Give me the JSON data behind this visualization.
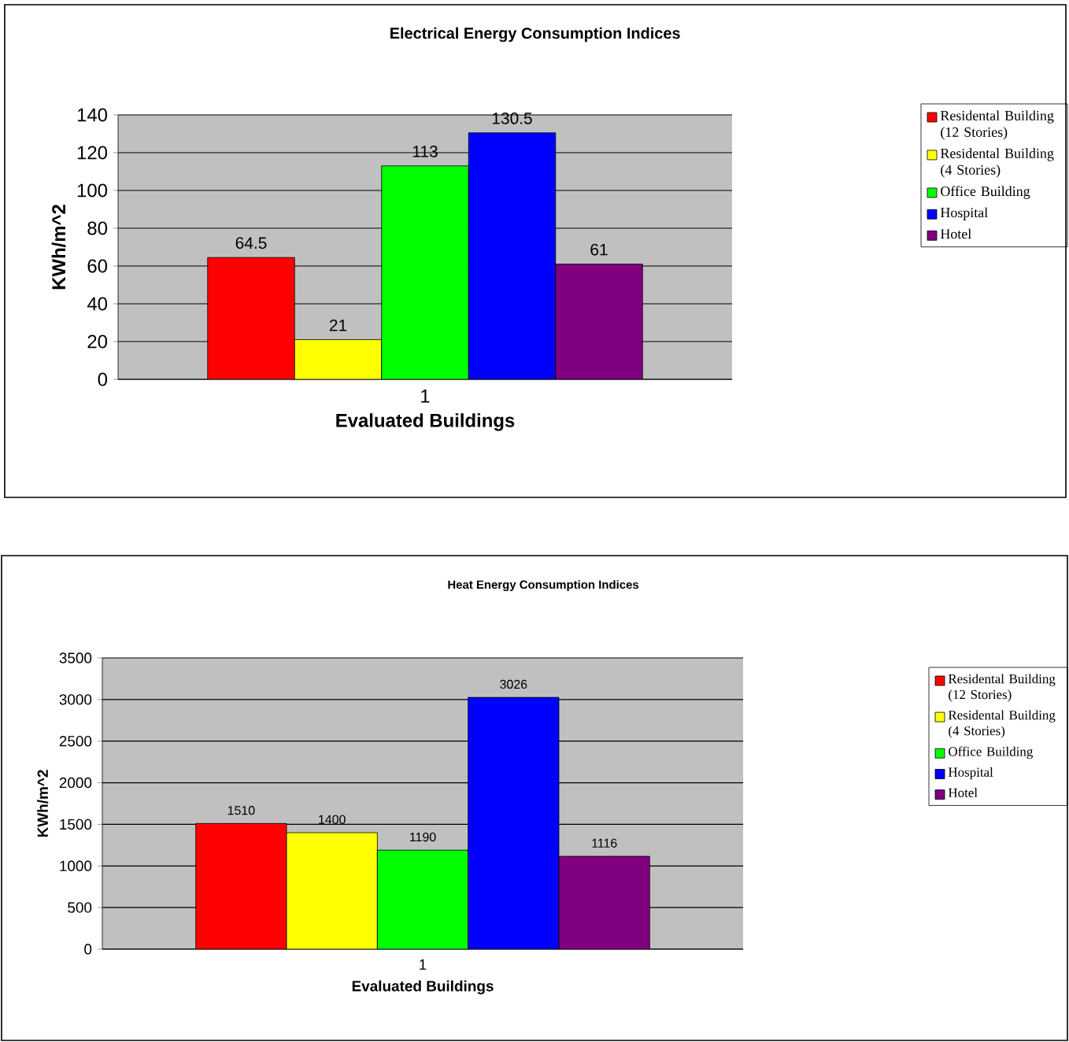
{
  "chart_data": [
    {
      "type": "bar",
      "title": "Electrical Energy Consumption Indices",
      "xlabel": "Evaluated Buildings",
      "ylabel": "KWh/m^2",
      "categories": [
        "1"
      ],
      "series": [
        {
          "name": "Residental Building (12 Stories)",
          "color": "#ff0000",
          "values": [
            64.5
          ]
        },
        {
          "name": "Residental Building (4 Stories)",
          "color": "#ffff00",
          "values": [
            21
          ]
        },
        {
          "name": "Office Building",
          "color": "#00ff00",
          "values": [
            113
          ]
        },
        {
          "name": "Hospital",
          "color": "#0000ff",
          "values": [
            130.5
          ]
        },
        {
          "name": "Hotel",
          "color": "#800080",
          "values": [
            61
          ]
        }
      ],
      "ylim": [
        0,
        140
      ],
      "yticks": [
        0,
        20,
        40,
        60,
        80,
        100,
        120,
        140
      ],
      "grid": "y",
      "legend": "right",
      "data_labels": true
    },
    {
      "type": "bar",
      "title": "Heat Energy Consumption Indices",
      "xlabel": "Evaluated Buildings",
      "ylabel": "KWh/m^2",
      "categories": [
        "1"
      ],
      "series": [
        {
          "name": "Residental Building (12 Stories)",
          "color": "#ff0000",
          "values": [
            1510
          ]
        },
        {
          "name": "Residental Building (4 Stories)",
          "color": "#ffff00",
          "values": [
            1400
          ]
        },
        {
          "name": "Office Building",
          "color": "#00ff00",
          "values": [
            1190
          ]
        },
        {
          "name": "Hospital",
          "color": "#0000ff",
          "values": [
            3026
          ]
        },
        {
          "name": "Hotel",
          "color": "#800080",
          "values": [
            1116
          ]
        }
      ],
      "ylim": [
        0,
        3500
      ],
      "yticks": [
        0,
        500,
        1000,
        1500,
        2000,
        2500,
        3000,
        3500
      ],
      "grid": "y",
      "legend": "right",
      "data_labels": true
    }
  ]
}
